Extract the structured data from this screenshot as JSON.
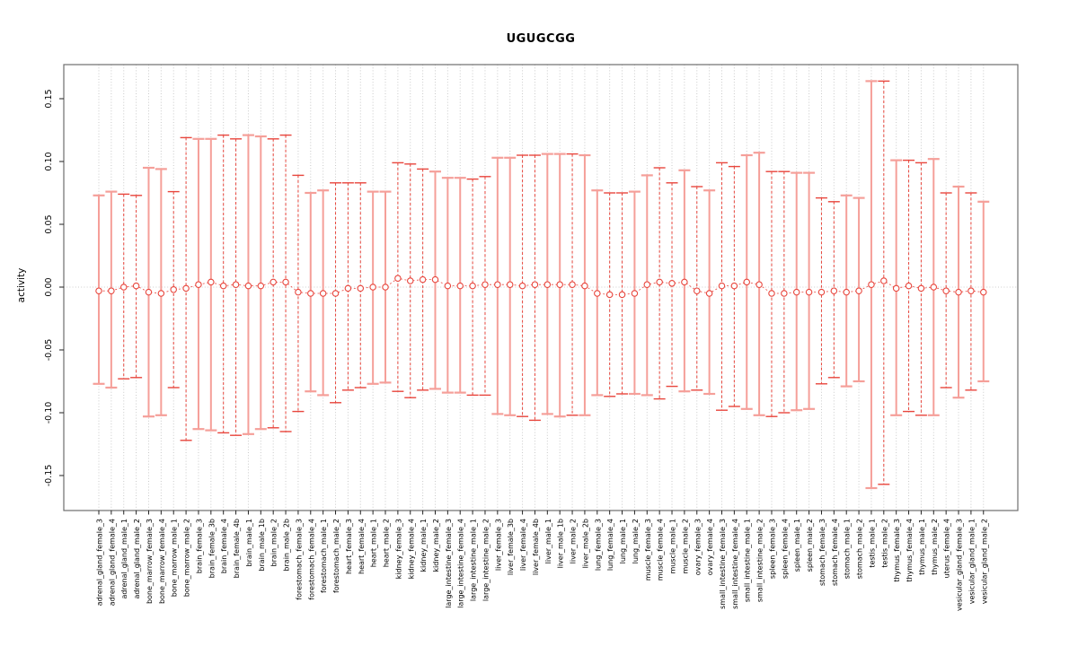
{
  "title": "UGUGCGG",
  "chart_data": {
    "type": "scatter",
    "subtype": "errorbar",
    "title": "UGUGCGG",
    "xlabel": "",
    "ylabel": "activity",
    "ylim": [
      -0.175,
      0.178
    ],
    "yticks": [
      0.15,
      0.1,
      0.05,
      0.0,
      -0.05,
      -0.1,
      -0.15
    ],
    "ytick_labels": [
      "0.15",
      "0.10",
      "0.05",
      "0.00",
      "-0.05",
      "-0.10",
      "-0.15"
    ],
    "grid": "dotted vertical line per category plus dotted horizontal line at zero",
    "legend": "none",
    "categories": [
      "adrenal_gland_female_3",
      "adrenal_gland_female_4",
      "adrenal_gland_male_1",
      "adrenal_gland_male_2",
      "bone_marrow_female_3",
      "bone_marrow_female_4",
      "bone_marrow_male_1",
      "bone_marrow_male_2",
      "brain_female_3",
      "brain_female_3b",
      "brain_female_4",
      "brain_female_4b",
      "brain_male_1",
      "brain_male_1b",
      "brain_male_2",
      "brain_male_2b",
      "forestomach_female_3",
      "forestomach_female_4",
      "forestomach_male_1",
      "forestomach_male_2",
      "heart_female_3",
      "heart_female_4",
      "heart_male_1",
      "heart_male_2",
      "kidney_female_3",
      "kidney_female_4",
      "kidney_male_1",
      "kidney_male_2",
      "large_intestine_female_3",
      "large_intestine_female_4",
      "large_intestine_male_1",
      "large_intestine_male_2",
      "liver_female_3",
      "liver_female_3b",
      "liver_female_4",
      "liver_female_4b",
      "liver_male_1",
      "liver_male_1b",
      "liver_male_2",
      "liver_male_2b",
      "lung_female_3",
      "lung_female_4",
      "lung_male_1",
      "lung_male_2",
      "muscle_female_3",
      "muscle_female_4",
      "muscle_male_1",
      "muscle_male_2",
      "ovary_female_3",
      "ovary_female_4",
      "small_intestine_female_3",
      "small_intestine_female_4",
      "small_intestine_male_1",
      "small_intestine_male_2",
      "spleen_female_3",
      "spleen_female_4",
      "spleen_male_1",
      "spleen_male_2",
      "stomach_female_3",
      "stomach_female_4",
      "stomach_male_1",
      "stomach_male_2",
      "testis_male_1",
      "testis_male_2",
      "thymus_female_3",
      "thymus_female_4",
      "thymus_male_1",
      "thymus_male_2",
      "uterus_female_4",
      "vesicular_gland_female_3",
      "vesicular_gland_male_1",
      "vesicular_gland_male_2"
    ],
    "series": [
      {
        "name": "mean_activity",
        "values": [
          -0.003,
          -0.003,
          0.0,
          0.001,
          -0.004,
          -0.005,
          -0.002,
          -0.001,
          0.002,
          0.004,
          0.001,
          0.002,
          0.001,
          0.001,
          0.004,
          0.004,
          -0.004,
          -0.005,
          -0.005,
          -0.005,
          -0.001,
          -0.001,
          0.0,
          0.0,
          0.007,
          0.005,
          0.006,
          0.006,
          0.001,
          0.001,
          0.001,
          0.002,
          0.002,
          0.002,
          0.001,
          0.002,
          0.002,
          0.002,
          0.002,
          0.001,
          -0.005,
          -0.006,
          -0.006,
          -0.005,
          0.002,
          0.004,
          0.003,
          0.004,
          -0.003,
          -0.005,
          0.001,
          0.001,
          0.004,
          0.002,
          -0.005,
          -0.005,
          -0.004,
          -0.004,
          -0.004,
          -0.003,
          -0.004,
          -0.003,
          0.002,
          0.005,
          -0.001,
          0.001,
          -0.001,
          0.0,
          -0.003,
          -0.004,
          -0.003,
          -0.004
        ]
      },
      {
        "name": "upper_ci",
        "values": [
          0.073,
          0.076,
          0.074,
          0.073,
          0.095,
          0.094,
          0.076,
          0.119,
          0.118,
          0.118,
          0.121,
          0.118,
          0.121,
          0.12,
          0.118,
          0.121,
          0.089,
          0.075,
          0.077,
          0.083,
          0.083,
          0.083,
          0.076,
          0.076,
          0.099,
          0.098,
          0.094,
          0.092,
          0.087,
          0.087,
          0.086,
          0.088,
          0.103,
          0.103,
          0.105,
          0.105,
          0.106,
          0.106,
          0.106,
          0.105,
          0.077,
          0.075,
          0.075,
          0.076,
          0.089,
          0.095,
          0.083,
          0.093,
          0.08,
          0.077,
          0.099,
          0.096,
          0.105,
          0.107,
          0.092,
          0.092,
          0.091,
          0.091,
          0.071,
          0.068,
          0.073,
          0.071,
          0.164,
          0.164,
          0.101,
          0.101,
          0.099,
          0.102,
          0.075,
          0.08,
          0.075,
          0.068
        ]
      },
      {
        "name": "lower_ci",
        "values": [
          -0.077,
          -0.08,
          -0.073,
          -0.072,
          -0.103,
          -0.102,
          -0.08,
          -0.122,
          -0.113,
          -0.114,
          -0.116,
          -0.118,
          -0.117,
          -0.113,
          -0.112,
          -0.115,
          -0.099,
          -0.083,
          -0.086,
          -0.092,
          -0.082,
          -0.08,
          -0.077,
          -0.076,
          -0.083,
          -0.088,
          -0.082,
          -0.081,
          -0.084,
          -0.084,
          -0.086,
          -0.086,
          -0.101,
          -0.102,
          -0.103,
          -0.106,
          -0.101,
          -0.103,
          -0.102,
          -0.102,
          -0.086,
          -0.087,
          -0.085,
          -0.085,
          -0.086,
          -0.089,
          -0.079,
          -0.083,
          -0.082,
          -0.085,
          -0.098,
          -0.095,
          -0.097,
          -0.102,
          -0.103,
          -0.1,
          -0.098,
          -0.097,
          -0.077,
          -0.072,
          -0.079,
          -0.075,
          -0.16,
          -0.157,
          -0.102,
          -0.099,
          -0.102,
          -0.102,
          -0.08,
          -0.088,
          -0.082,
          -0.075
        ]
      }
    ],
    "line_styles": "ssddssddssddssdddssdddssdddsssddssddssdssddssddsdsddssddssddsssdsddsdsds",
    "colors": {
      "bar_solid": "#f59f99",
      "bar_dashed": "#e8463d",
      "point_stroke": "#e8463d",
      "point_fill": "#ffffff",
      "connector": "#e8463d",
      "grid": "#c9c9c9",
      "zero_line": "#cccccc",
      "box": "#6e6e6e",
      "tick": "#222222",
      "text": "#000000"
    }
  }
}
